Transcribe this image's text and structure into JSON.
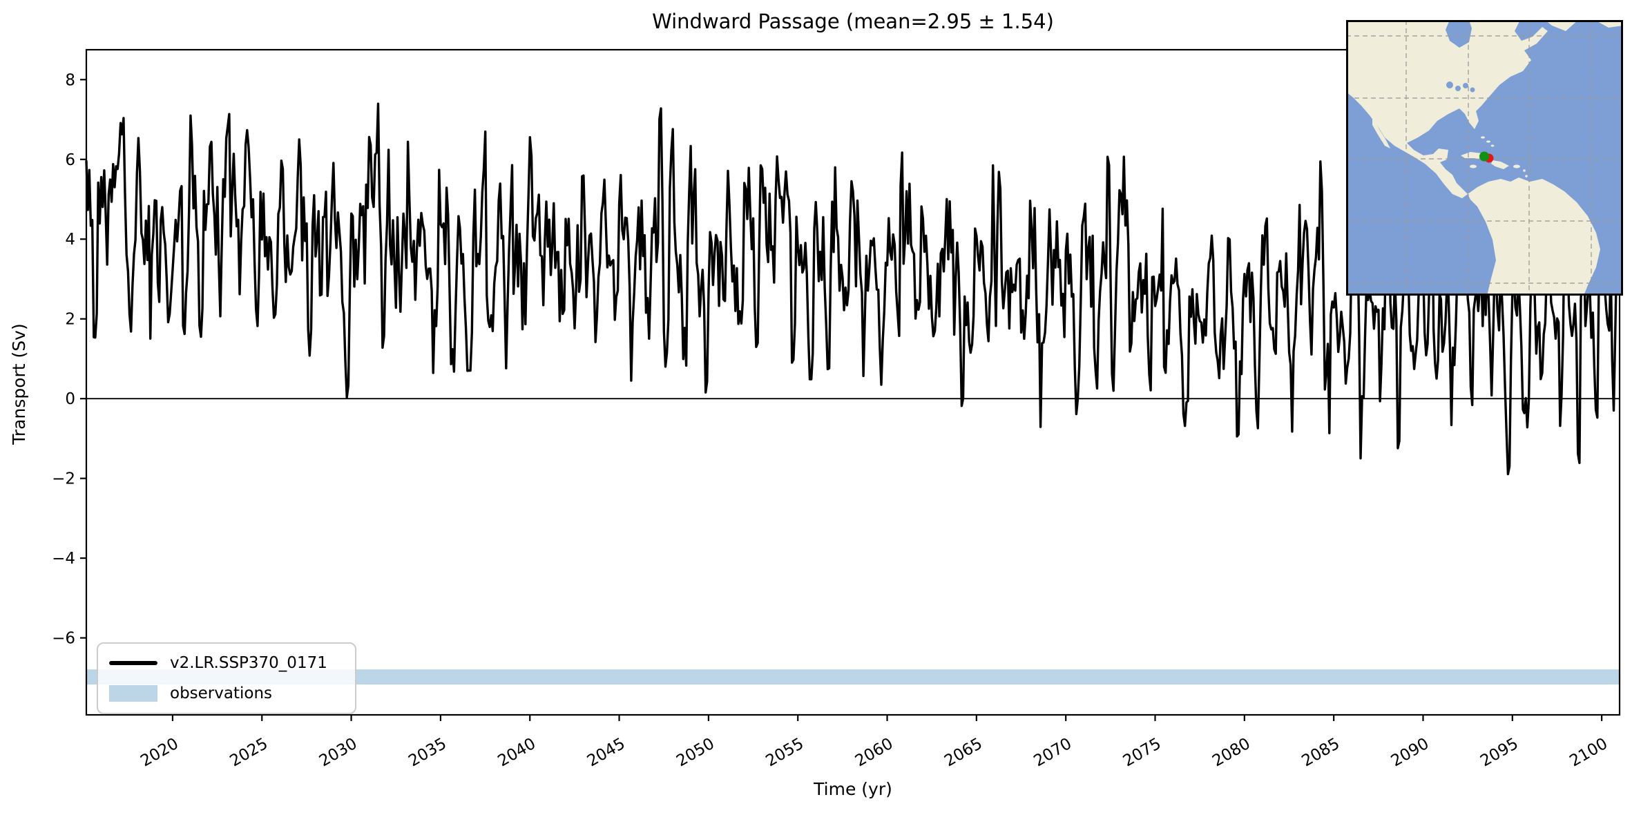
{
  "chart_data": {
    "type": "line",
    "title": "Windward Passage (mean=2.95 ± 1.54)",
    "xlabel": "Time (yr)",
    "ylabel": "Transport (Sv)",
    "xlim": [
      2015.17,
      2101.0
    ],
    "ylim": [
      -7.93,
      8.75
    ],
    "xticks": [
      2020,
      2025,
      2030,
      2035,
      2040,
      2045,
      2050,
      2055,
      2060,
      2065,
      2070,
      2075,
      2080,
      2085,
      2090,
      2095,
      2100
    ],
    "yticks": [
      8,
      6,
      4,
      2,
      0,
      -2,
      -4,
      -6
    ],
    "grid": false,
    "zero_line": 0,
    "legend": {
      "location": "lower left",
      "entries": [
        {
          "label": "v2.LR.SSP370_0171",
          "swatch": "line",
          "color": "#000000"
        },
        {
          "label": "observations",
          "swatch": "patch",
          "color": "#bcd6e8"
        }
      ]
    },
    "series": [
      {
        "name": "v2.LR.SSP370_0171",
        "type": "line",
        "color": "#000000",
        "linewidth": 3.4,
        "resolution": "monthly",
        "stats": {
          "mean": 2.95,
          "std": 1.54
        },
        "trend_keypoints": [
          [
            2015,
            4.35
          ],
          [
            2025,
            4.0
          ],
          [
            2032,
            3.75
          ],
          [
            2040,
            3.55
          ],
          [
            2047,
            3.8
          ],
          [
            2052,
            3.45
          ],
          [
            2060,
            3.35
          ],
          [
            2063,
            3.0
          ],
          [
            2068,
            2.75
          ],
          [
            2073,
            2.8
          ],
          [
            2078,
            2.5
          ],
          [
            2084,
            2.45
          ],
          [
            2090,
            2.2
          ],
          [
            2096,
            2.0
          ],
          [
            2101,
            1.9
          ]
        ],
        "seasonal": {
          "amp_annual": 1.15,
          "amp_semiannual": 0.5
        },
        "noise": {
          "sigma": 0.9,
          "rho": 0.45,
          "seed": 20170171
        },
        "extremes": [
          [
            2024.2,
            7.1
          ],
          [
            2029.8,
            0.05
          ],
          [
            2031.5,
            7.4
          ],
          [
            2037.5,
            6.7
          ],
          [
            2047.3,
            8.0
          ],
          [
            2049.9,
            0.2
          ],
          [
            2053.8,
            6.6
          ],
          [
            2060.8,
            6.9
          ],
          [
            2064.2,
            -0.65
          ],
          [
            2065.9,
            5.9
          ],
          [
            2068.6,
            -0.75
          ],
          [
            2072.4,
            6.1
          ],
          [
            2079.6,
            -1.0
          ],
          [
            2084.3,
            5.9
          ],
          [
            2086.5,
            -1.5
          ],
          [
            2088.6,
            -1.3
          ],
          [
            2090.5,
            5.6
          ],
          [
            2094.8,
            -1.85
          ],
          [
            2098.7,
            -1.85
          ]
        ],
        "envelope_max": [
          [
            2015,
            7.0
          ],
          [
            2024,
            7.15
          ],
          [
            2030,
            7.0
          ],
          [
            2031.5,
            7.45
          ],
          [
            2034,
            6.9
          ],
          [
            2037.5,
            6.75
          ],
          [
            2042,
            6.4
          ],
          [
            2047.3,
            8.05
          ],
          [
            2050,
            6.9
          ],
          [
            2053.8,
            6.65
          ],
          [
            2058,
            6.4
          ],
          [
            2060.8,
            6.95
          ],
          [
            2065.9,
            5.95
          ],
          [
            2072.4,
            6.15
          ],
          [
            2078,
            5.6
          ],
          [
            2084.3,
            5.95
          ],
          [
            2090.5,
            5.65
          ],
          [
            2096,
            5.3
          ],
          [
            2101,
            5.3
          ]
        ],
        "envelope_min": [
          [
            2015,
            1.6
          ],
          [
            2021,
            1.0
          ],
          [
            2025,
            0.6
          ],
          [
            2029.8,
            0.03
          ],
          [
            2033,
            0.6
          ],
          [
            2040,
            0.8
          ],
          [
            2045,
            0.5
          ],
          [
            2049.9,
            0.15
          ],
          [
            2052,
            0.3
          ],
          [
            2058,
            0.6
          ],
          [
            2062,
            0.0
          ],
          [
            2064.2,
            -0.7
          ],
          [
            2068.6,
            -0.8
          ],
          [
            2071,
            -0.3
          ],
          [
            2076,
            -0.6
          ],
          [
            2079.6,
            -1.05
          ],
          [
            2083,
            -0.8
          ],
          [
            2086.5,
            -1.55
          ],
          [
            2091,
            -1.2
          ],
          [
            2094.8,
            -1.9
          ],
          [
            2098.7,
            -1.9
          ],
          [
            2101,
            -1.5
          ]
        ]
      },
      {
        "name": "observations",
        "type": "hspan",
        "color": "#bcd6e8",
        "y_range": [
          -7.17,
          -6.79
        ]
      }
    ]
  },
  "inset_map": {
    "region": "Americas / Caribbean — Windward Passage",
    "ocean_color": "#7e9fd6",
    "land_color": "#f0eeda",
    "gridline_color": "#9a9a9a",
    "border_color": "#000000",
    "markers": [
      {
        "name": "section-location-red",
        "color": "#e11818",
        "shape": "circle"
      },
      {
        "name": "section-location-green",
        "color": "#129212",
        "shape": "circle"
      }
    ]
  }
}
